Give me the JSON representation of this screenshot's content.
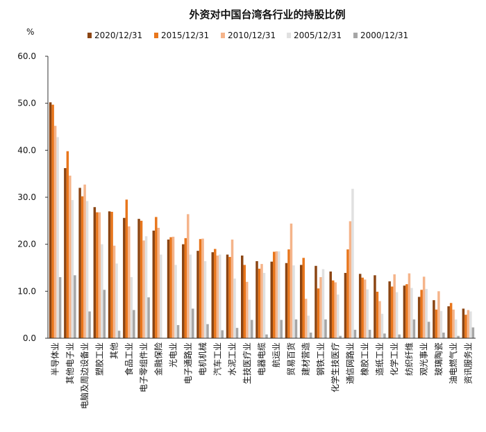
{
  "chart_data": {
    "type": "bar",
    "title": "外资对中国台湾各行业的持股比例",
    "y_unit": "%",
    "ylim": [
      0,
      60
    ],
    "yticks": [
      "0.0",
      "10.0",
      "20.0",
      "30.0",
      "40.0",
      "50.0",
      "60.0"
    ],
    "grid": false,
    "legend_position": "top",
    "categories": [
      "半导体业",
      "其他电子业",
      "电脑及周边设备业",
      "塑胶工业",
      "其他",
      "食品工业",
      "电子零组件业",
      "金融保险",
      "光电业",
      "电子通路业",
      "电机机械",
      "汽车工业",
      "水泥工业",
      "生技医疗业",
      "电器电缆",
      "航运业",
      "贸易百货",
      "建材营造",
      "钢铁工业",
      "化学生技医疗",
      "通信网路业",
      "橡胶工业",
      "造纸工业",
      "化学工业",
      "纺织纤维",
      "观光事业",
      "玻璃陶瓷",
      "油电燃气业",
      "资讯服务业"
    ],
    "series": [
      {
        "name": "2020/12/31",
        "color": "#8B4513",
        "values": [
          50.2,
          36.2,
          32.0,
          27.9,
          27.0,
          25.6,
          25.4,
          22.9,
          21.0,
          20.0,
          18.6,
          18.3,
          17.8,
          17.6,
          16.4,
          16.3,
          16.0,
          15.6,
          15.4,
          14.2,
          13.9,
          13.7,
          13.4,
          12.1,
          11.2,
          8.8,
          8.1,
          6.8,
          6.3
        ]
      },
      {
        "name": "2015/12/31",
        "color": "#E8761C",
        "values": [
          49.7,
          39.8,
          30.2,
          26.8,
          26.9,
          29.5,
          25.0,
          25.8,
          21.5,
          21.3,
          21.1,
          19.0,
          17.3,
          15.6,
          14.8,
          18.4,
          18.9,
          17.1,
          10.6,
          12.3,
          18.9,
          12.9,
          9.9,
          11.0,
          11.5,
          10.3,
          6.1,
          7.5,
          5.0
        ]
      },
      {
        "name": "2010/12/31",
        "color": "#F5B48A",
        "values": [
          45.2,
          34.6,
          32.7,
          26.8,
          19.7,
          23.8,
          20.8,
          23.5,
          21.6,
          26.4,
          21.2,
          17.6,
          21.0,
          12.0,
          15.8,
          18.5,
          24.4,
          8.4,
          13.0,
          11.9,
          24.9,
          12.5,
          7.9,
          13.6,
          13.8,
          13.1,
          10.0,
          6.1,
          6.0
        ]
      },
      {
        "name": "2005/12/31",
        "color": "#E0E0E0",
        "values": [
          42.8,
          29.4,
          29.2,
          20.0,
          15.9,
          13.0,
          21.7,
          17.8,
          15.6,
          17.8,
          16.4,
          17.8,
          12.7,
          8.2,
          13.9,
          18.5,
          15.5,
          4.8,
          14.7,
          9.3,
          31.8,
          10.4,
          5.2,
          9.8,
          10.7,
          10.5,
          5.8,
          4.0,
          5.7
        ]
      },
      {
        "name": "2000/12/31",
        "color": "#A6A6A6",
        "values": [
          13.0,
          13.4,
          5.7,
          10.3,
          1.6,
          6.0,
          8.7,
          0.0,
          2.8,
          6.3,
          3.0,
          1.7,
          2.2,
          3.9,
          0.8,
          3.9,
          4.0,
          1.2,
          4.0,
          0.5,
          1.8,
          1.8,
          1.0,
          0.8,
          4.0,
          3.5,
          1.2,
          0.5,
          2.3
        ]
      }
    ]
  }
}
